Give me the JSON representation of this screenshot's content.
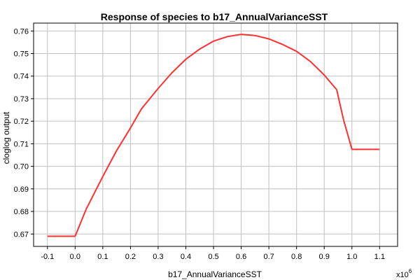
{
  "chart_data": {
    "type": "line",
    "title": "Response of species to b17_AnnualVarianceSST",
    "xlabel": "b17_AnnualVarianceSST",
    "ylabel": "cloglog output",
    "x_multiplier_base": "x10",
    "x_multiplier_exp": "6",
    "xlim": [
      -0.15,
      1.165
    ],
    "ylim": [
      0.6645,
      0.7635
    ],
    "x_ticks": [
      "-0.1",
      "0.0",
      "0.1",
      "0.2",
      "0.3",
      "0.4",
      "0.5",
      "0.6",
      "0.7",
      "0.8",
      "0.9",
      "1.0",
      "1.1"
    ],
    "y_ticks": [
      "0.67",
      "0.68",
      "0.69",
      "0.70",
      "0.71",
      "0.72",
      "0.73",
      "0.74",
      "0.75",
      "0.76"
    ],
    "grid": true,
    "series": [
      {
        "color": "#ff3030",
        "x": [
          -0.1,
          0.0,
          0.005,
          0.04,
          0.1,
          0.15,
          0.2,
          0.24,
          0.3,
          0.35,
          0.4,
          0.45,
          0.5,
          0.55,
          0.6,
          0.65,
          0.7,
          0.75,
          0.8,
          0.85,
          0.9,
          0.945,
          0.97,
          1.0,
          1.1
        ],
        "y": [
          0.669,
          0.669,
          0.6705,
          0.681,
          0.6955,
          0.707,
          0.717,
          0.7255,
          0.7345,
          0.7415,
          0.7475,
          0.752,
          0.7555,
          0.7575,
          0.7585,
          0.758,
          0.7565,
          0.754,
          0.751,
          0.7465,
          0.7405,
          0.734,
          0.7205,
          0.7075,
          0.7075
        ]
      }
    ]
  }
}
